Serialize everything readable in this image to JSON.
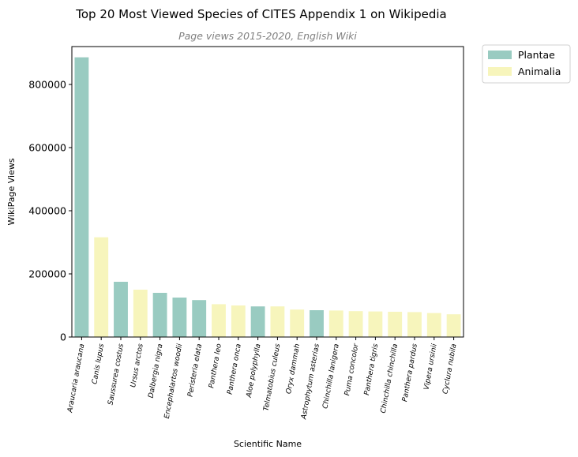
{
  "chart_data": {
    "type": "bar",
    "title": "Top 20 Most Viewed Species of CITES Appendix 1 on Wikipedia",
    "subtitle": "Page views 2015-2020, English Wiki",
    "xlabel": "Scientific Name",
    "ylabel": "WikiPage Views",
    "ylim": [
      0,
      920000
    ],
    "yticks": [
      0,
      200000,
      400000,
      600000,
      800000
    ],
    "ytick_labels": [
      "0",
      "200000",
      "400000",
      "600000",
      "800000"
    ],
    "grid": false,
    "legend_position": "outside-top-right",
    "legend": [
      {
        "name": "Plantae",
        "color": "#99cbc1"
      },
      {
        "name": "Animalia",
        "color": "#f7f5bc"
      }
    ],
    "categories": [
      "Araucaria araucana",
      "Canis lupus",
      "Saussurea costus",
      "Ursus arctos",
      "Dalbergia nigra",
      "Encephalartos woodii",
      "Peristeria elata",
      "Panthera leo",
      "Panthera onca",
      "Aloe polyphylla",
      "Telmatobius culeus",
      "Oryx dammah",
      "Astrophytum asterias",
      "Chinchilla lanigera",
      "Puma concolor",
      "Panthera tigris",
      "Chinchilla chinchilla",
      "Panthera pardus",
      "Vipera ursinii",
      "Cyclura nubila"
    ],
    "values": [
      886000,
      316000,
      175000,
      150000,
      140000,
      125000,
      117000,
      104000,
      100000,
      97000,
      97000,
      87000,
      85000,
      84000,
      82000,
      81000,
      80000,
      79000,
      76000,
      72000
    ],
    "kingdom": [
      "Plantae",
      "Animalia",
      "Plantae",
      "Animalia",
      "Plantae",
      "Plantae",
      "Plantae",
      "Animalia",
      "Animalia",
      "Plantae",
      "Animalia",
      "Animalia",
      "Plantae",
      "Animalia",
      "Animalia",
      "Animalia",
      "Animalia",
      "Animalia",
      "Animalia",
      "Animalia"
    ]
  }
}
